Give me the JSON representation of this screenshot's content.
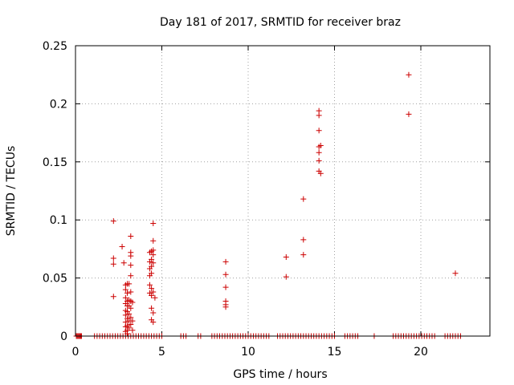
{
  "chart_data": {
    "type": "scatter",
    "title": "Day 181 of 2017, SRMTID for receiver braz",
    "xlabel": "GPS time / hours",
    "ylabel": "SRMTID / TECUs",
    "xlim": [
      0,
      24
    ],
    "ylim": [
      0,
      0.25
    ],
    "grid": true,
    "marker": "+",
    "marker_color": "#cc0000",
    "x_ticks": [
      0,
      5,
      10,
      15,
      20
    ],
    "x_tick_labels": [
      "0",
      "5",
      "10",
      "15",
      "20"
    ],
    "y_ticks": [
      0,
      0.05,
      0.1,
      0.15,
      0.2,
      0.25
    ],
    "y_tick_labels": [
      "0",
      "0.05",
      "0.1",
      "0.15",
      "0.2",
      "0.25"
    ],
    "series": [
      {
        "name": "SRMTID",
        "points": [
          [
            2.2,
            0.099
          ],
          [
            2.2,
            0.067
          ],
          [
            2.2,
            0.062
          ],
          [
            2.2,
            0.034
          ],
          [
            2.7,
            0.077
          ],
          [
            2.8,
            0.063
          ],
          [
            2.9,
            0.044
          ],
          [
            2.9,
            0.04
          ],
          [
            2.9,
            0.033
          ],
          [
            2.9,
            0.028
          ],
          [
            2.9,
            0.022
          ],
          [
            2.9,
            0.018
          ],
          [
            2.9,
            0.012
          ],
          [
            2.9,
            0.008
          ],
          [
            2.9,
            0.004
          ],
          [
            3.0,
            0.045
          ],
          [
            3.0,
            0.037
          ],
          [
            3.0,
            0.03
          ],
          [
            3.0,
            0.026
          ],
          [
            3.0,
            0.021
          ],
          [
            3.0,
            0.015
          ],
          [
            3.0,
            0.009
          ],
          [
            3.0,
            0.005
          ],
          [
            3.0,
            0.002
          ],
          [
            3.1,
            0.045
          ],
          [
            3.1,
            0.031
          ],
          [
            3.1,
            0.026
          ],
          [
            3.1,
            0.019
          ],
          [
            3.1,
            0.013
          ],
          [
            3.1,
            0.007
          ],
          [
            3.2,
            0.086
          ],
          [
            3.2,
            0.072
          ],
          [
            3.2,
            0.069
          ],
          [
            3.2,
            0.061
          ],
          [
            3.2,
            0.052
          ],
          [
            3.2,
            0.038
          ],
          [
            3.2,
            0.03
          ],
          [
            3.2,
            0.024
          ],
          [
            3.2,
            0.016
          ],
          [
            3.2,
            0.01
          ],
          [
            3.3,
            0.029
          ],
          [
            3.3,
            0.013
          ],
          [
            3.3,
            0.005
          ],
          [
            4.3,
            0.072
          ],
          [
            4.3,
            0.064
          ],
          [
            4.3,
            0.058
          ],
          [
            4.3,
            0.052
          ],
          [
            4.3,
            0.044
          ],
          [
            4.3,
            0.037
          ],
          [
            4.4,
            0.073
          ],
          [
            4.4,
            0.066
          ],
          [
            4.4,
            0.06
          ],
          [
            4.4,
            0.054
          ],
          [
            4.4,
            0.041
          ],
          [
            4.4,
            0.035
          ],
          [
            4.4,
            0.024
          ],
          [
            4.4,
            0.014
          ],
          [
            4.5,
            0.097
          ],
          [
            4.5,
            0.082
          ],
          [
            4.5,
            0.074
          ],
          [
            4.5,
            0.07
          ],
          [
            4.5,
            0.063
          ],
          [
            4.5,
            0.038
          ],
          [
            4.5,
            0.02
          ],
          [
            4.5,
            0.012
          ],
          [
            4.6,
            0.033
          ],
          [
            8.7,
            0.064
          ],
          [
            8.7,
            0.053
          ],
          [
            8.7,
            0.042
          ],
          [
            8.7,
            0.03
          ],
          [
            8.7,
            0.027
          ],
          [
            8.7,
            0.025
          ],
          [
            12.2,
            0.068
          ],
          [
            12.2,
            0.051
          ],
          [
            13.2,
            0.118
          ],
          [
            13.2,
            0.083
          ],
          [
            13.2,
            0.07
          ],
          [
            14.1,
            0.194
          ],
          [
            14.1,
            0.19
          ],
          [
            14.1,
            0.177
          ],
          [
            14.1,
            0.163
          ],
          [
            14.1,
            0.158
          ],
          [
            14.1,
            0.151
          ],
          [
            14.1,
            0.142
          ],
          [
            14.2,
            0.164
          ],
          [
            14.2,
            0.14
          ],
          [
            19.3,
            0.225
          ],
          [
            19.3,
            0.191
          ],
          [
            22.0,
            0.054
          ]
        ]
      }
    ],
    "zero_value_times": [
      0.05,
      0.1,
      0.15,
      0.2,
      0.25,
      0.3,
      0.35,
      1.1,
      1.25,
      1.4,
      1.55,
      1.7,
      1.85,
      2.0,
      2.15,
      2.3,
      2.45,
      2.6,
      2.75,
      2.9,
      3.05,
      3.2,
      3.35,
      3.5,
      3.65,
      3.8,
      3.95,
      4.1,
      4.25,
      4.4,
      4.55,
      4.7,
      4.85,
      5.0,
      6.1,
      6.25,
      6.4,
      7.1,
      7.25,
      7.9,
      8.05,
      8.2,
      8.35,
      8.5,
      8.65,
      8.8,
      8.95,
      9.1,
      9.25,
      9.4,
      9.55,
      9.7,
      9.85,
      10.0,
      10.15,
      10.3,
      10.45,
      10.6,
      10.75,
      10.9,
      11.05,
      11.2,
      11.7,
      11.85,
      12.0,
      12.15,
      12.3,
      12.45,
      12.6,
      12.75,
      12.9,
      13.05,
      13.2,
      13.35,
      13.5,
      13.65,
      13.8,
      13.95,
      14.1,
      14.25,
      14.4,
      14.55,
      14.7,
      14.85,
      15.0,
      15.6,
      15.75,
      15.9,
      16.05,
      16.2,
      16.35,
      17.3,
      18.4,
      18.55,
      18.7,
      18.85,
      19.0,
      19.15,
      19.3,
      19.45,
      19.6,
      19.75,
      19.9,
      20.05,
      20.2,
      20.35,
      20.5,
      20.65,
      20.8,
      21.4,
      21.55,
      21.7,
      21.85,
      22.0,
      22.15,
      22.3
    ]
  }
}
